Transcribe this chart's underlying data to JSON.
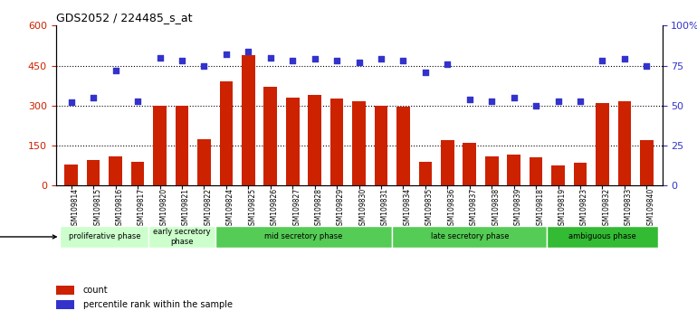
{
  "title": "GDS2052 / 224485_s_at",
  "samples": [
    "GSM109814",
    "GSM109815",
    "GSM109816",
    "GSM109817",
    "GSM109820",
    "GSM109821",
    "GSM109822",
    "GSM109824",
    "GSM109825",
    "GSM109826",
    "GSM109827",
    "GSM109828",
    "GSM109829",
    "GSM109830",
    "GSM109831",
    "GSM109834",
    "GSM109835",
    "GSM109836",
    "GSM109837",
    "GSM109838",
    "GSM109839",
    "GSM109818",
    "GSM109819",
    "GSM109823",
    "GSM109832",
    "GSM109833",
    "GSM109840"
  ],
  "counts": [
    80,
    95,
    110,
    90,
    300,
    300,
    175,
    390,
    490,
    370,
    330,
    340,
    325,
    315,
    300,
    295,
    90,
    170,
    160,
    110,
    115,
    105,
    75,
    85,
    310,
    315,
    170
  ],
  "percentiles": [
    52,
    55,
    72,
    53,
    80,
    78,
    75,
    82,
    84,
    80,
    78,
    79,
    78,
    77,
    79,
    78,
    71,
    76,
    54,
    53,
    55,
    50,
    53,
    53,
    78,
    79,
    75
  ],
  "phases": [
    {
      "label": "proliferative phase",
      "start": 0,
      "end": 4,
      "color": "#ccffcc"
    },
    {
      "label": "early secretory\nphase",
      "start": 4,
      "end": 7,
      "color": "#ccffcc"
    },
    {
      "label": "mid secretory phase",
      "start": 7,
      "end": 15,
      "color": "#55cc55"
    },
    {
      "label": "late secretory phase",
      "start": 15,
      "end": 22,
      "color": "#55cc55"
    },
    {
      "label": "ambiguous phase",
      "start": 22,
      "end": 27,
      "color": "#33bb33"
    }
  ],
  "bar_color": "#cc2200",
  "dot_color": "#3333cc",
  "ylim_left": [
    0,
    600
  ],
  "ylim_right": [
    0,
    100
  ],
  "yticks_left": [
    0,
    150,
    300,
    450,
    600
  ],
  "ytick_labels_left": [
    "0",
    "150",
    "300",
    "450",
    "600"
  ],
  "yticks_right": [
    0,
    25,
    50,
    75,
    100
  ],
  "ytick_labels_right": [
    "0",
    "25",
    "50",
    "75",
    "100%"
  ],
  "grid_lines": [
    150,
    300,
    450
  ],
  "tick_bg_color": "#cccccc",
  "plot_bg_color": "#ffffff"
}
